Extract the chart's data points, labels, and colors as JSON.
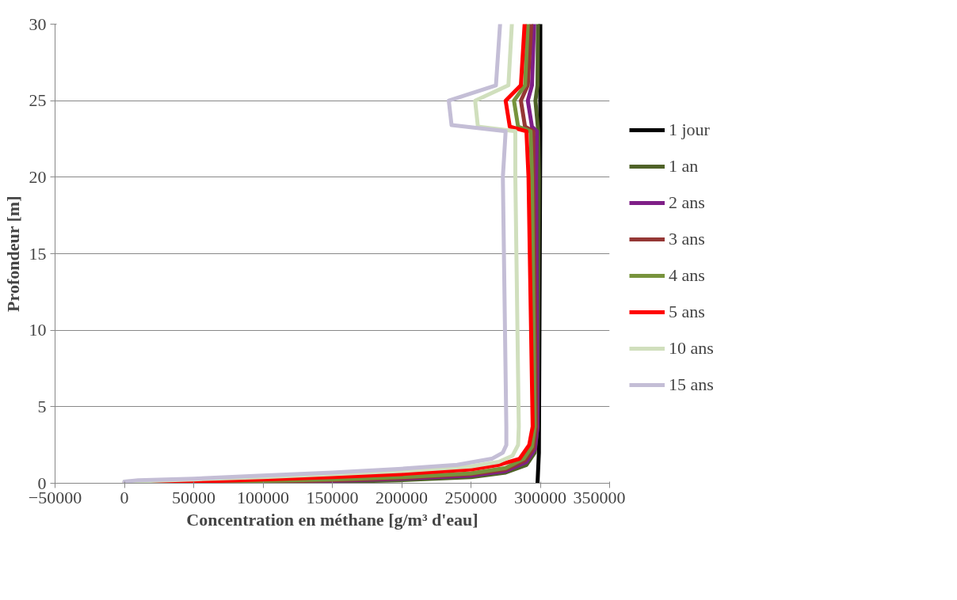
{
  "chart_data": {
    "type": "line",
    "xlabel": "Concentration en méthane [g/m³ d'eau]",
    "ylabel": "Profondeur [m]",
    "xlim": [
      -50000,
      350000
    ],
    "xticks": [
      -50000,
      0,
      50000,
      100000,
      150000,
      200000,
      250000,
      300000,
      350000
    ],
    "ylim": [
      0,
      30
    ],
    "yticks": [
      0,
      5,
      10,
      15,
      20,
      25,
      30
    ],
    "grid": "y",
    "legend": "right",
    "line_style": "solid",
    "series": [
      {
        "name": "1 jour",
        "color": "#000000",
        "x": [
          298000,
          299000,
          300000,
          300000
        ],
        "values": [
          0,
          2,
          23,
          30
        ]
      },
      {
        "name": "1 an",
        "color": "#4f6228",
        "x": [
          94000,
          150000,
          200000,
          250000,
          275000,
          290000,
          296000,
          298000,
          299000,
          298500,
          296500,
          298000,
          298300
        ],
        "values": [
          0,
          0.1,
          0.2,
          0.4,
          0.7,
          1.2,
          2,
          3.7,
          20,
          23,
          25,
          26,
          30
        ]
      },
      {
        "name": "2 ans",
        "color": "#7f1f87",
        "x": [
          33500,
          100000,
          150000,
          200000,
          250000,
          275000,
          290000,
          296000,
          298000,
          297000,
          297500,
          294000,
          291000,
          294000,
          295500
        ],
        "values": [
          0,
          0.05,
          0.15,
          0.3,
          0.5,
          0.8,
          1.4,
          2.2,
          3.7,
          20,
          23,
          23.3,
          25,
          26,
          30
        ]
      },
      {
        "name": "3 ans",
        "color": "#953735",
        "x": [
          15000,
          100000,
          150000,
          200000,
          250000,
          275000,
          289000,
          295000,
          297000,
          295000,
          295000,
          289000,
          286000,
          291000,
          293500
        ],
        "values": [
          0,
          0.1,
          0.2,
          0.35,
          0.6,
          0.9,
          1.5,
          2.3,
          3.7,
          20,
          23,
          23.3,
          25,
          26,
          30
        ]
      },
      {
        "name": "4 ans",
        "color": "#77933c",
        "x": [
          10000,
          100000,
          150000,
          200000,
          250000,
          275000,
          288000,
          294000,
          296000,
          294000,
          293000,
          284000,
          281000,
          289000,
          291000
        ],
        "values": [
          0,
          0.15,
          0.25,
          0.4,
          0.65,
          1.0,
          1.6,
          2.4,
          3.7,
          20,
          23,
          23.3,
          25,
          26,
          30
        ]
      },
      {
        "name": "5 ans",
        "color": "#ff0000",
        "x": [
          0,
          50000,
          100000,
          150000,
          200000,
          250000,
          270000,
          285000,
          292000,
          294500,
          291500,
          290000,
          278000,
          275000,
          286000,
          288700
        ],
        "values": [
          0,
          0.1,
          0.25,
          0.4,
          0.6,
          0.9,
          1.2,
          1.6,
          2.5,
          3.7,
          20,
          23,
          23.3,
          25,
          26,
          30
        ]
      },
      {
        "name": "10 ans",
        "color": "#d0dfbd",
        "x": [
          0,
          50000,
          100000,
          150000,
          200000,
          250000,
          270000,
          280000,
          284000,
          284500,
          282000,
          282000,
          255000,
          253000,
          277000,
          279500
        ],
        "values": [
          0.1,
          0.25,
          0.4,
          0.6,
          0.8,
          1.1,
          1.4,
          1.8,
          2.5,
          3.7,
          20,
          23,
          23.3,
          25,
          26,
          30
        ]
      },
      {
        "name": "15 ans",
        "color": "#c4bed6",
        "x": [
          0,
          10000,
          50000,
          100000,
          150000,
          200000,
          240000,
          265000,
          273000,
          275500,
          275500,
          273000,
          275000,
          236000,
          234000,
          268000,
          271000
        ],
        "values": [
          0.1,
          0.2,
          0.3,
          0.5,
          0.7,
          0.95,
          1.2,
          1.6,
          2.0,
          2.5,
          3.7,
          20,
          23,
          23.4,
          25,
          26,
          30
        ]
      }
    ]
  }
}
